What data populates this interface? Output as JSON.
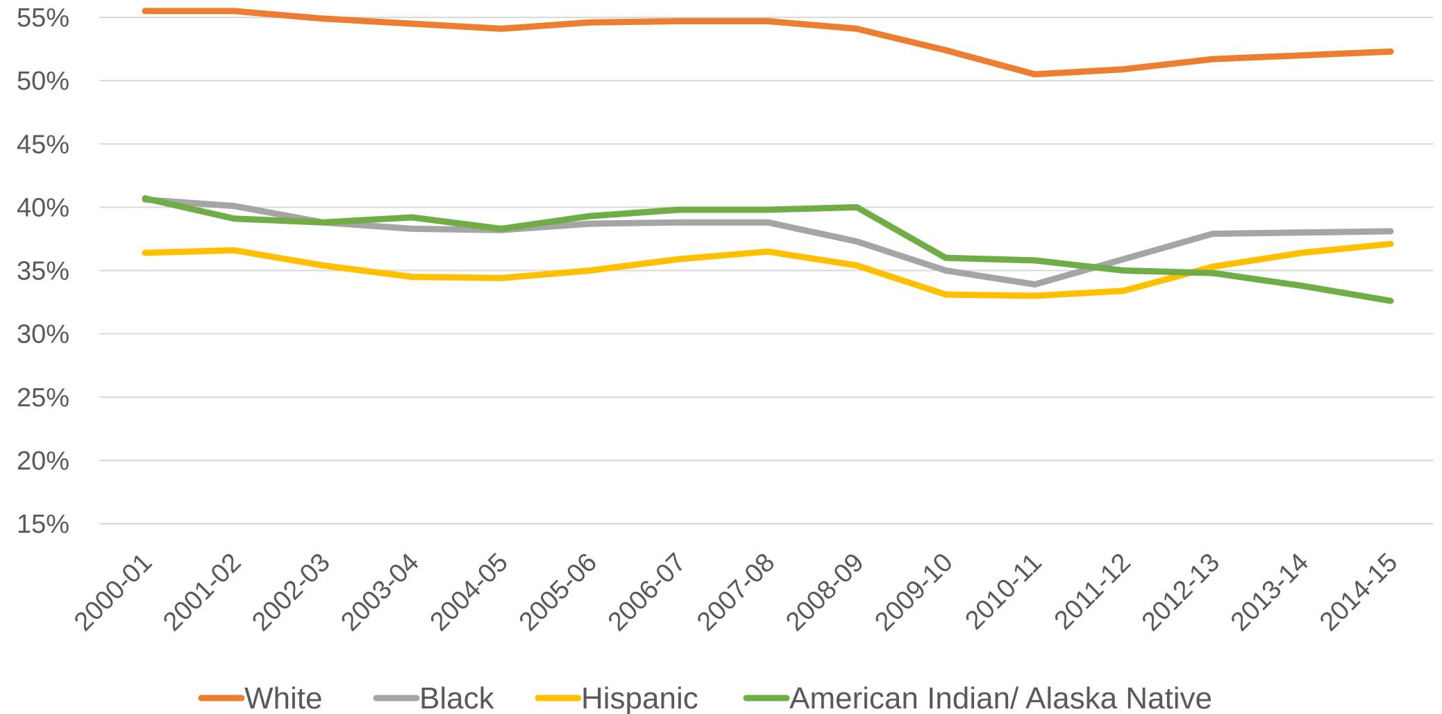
{
  "chart_data": {
    "type": "line",
    "title": "",
    "xlabel": "",
    "ylabel": "",
    "categories": [
      "2000-01",
      "2001-02",
      "2002-03",
      "2003-04",
      "2004-05",
      "2005-06",
      "2006-07",
      "2007-08",
      "2008-09",
      "2009-10",
      "2010-11",
      "2011-12",
      "2012-13",
      "2013-14",
      "2014-15"
    ],
    "y_ticks": [
      15,
      20,
      25,
      30,
      35,
      40,
      45,
      50,
      55
    ],
    "y_tick_labels": [
      "15%",
      "20%",
      "25%",
      "30%",
      "35%",
      "40%",
      "45%",
      "50%",
      "55%"
    ],
    "ylim": [
      15,
      55
    ],
    "grid": "horizontal",
    "legend_position": "bottom",
    "series": [
      {
        "name": "White",
        "color": "#ED7D31",
        "values": [
          55.5,
          55.5,
          54.9,
          54.5,
          54.1,
          54.6,
          54.7,
          54.7,
          54.1,
          52.4,
          50.5,
          50.9,
          51.7,
          52.0,
          52.3
        ]
      },
      {
        "name": "Black",
        "color": "#A5A5A5",
        "values": [
          40.6,
          40.1,
          38.8,
          38.3,
          38.2,
          38.7,
          38.8,
          38.8,
          37.3,
          35.0,
          33.9,
          35.9,
          37.9,
          38.0,
          38.1
        ]
      },
      {
        "name": "Hispanic",
        "color": "#FFC000",
        "values": [
          36.4,
          36.6,
          35.4,
          34.5,
          34.4,
          35.0,
          35.9,
          36.5,
          35.4,
          33.1,
          33.0,
          33.4,
          35.3,
          36.4,
          37.1
        ]
      },
      {
        "name": "American Indian/ Alaska Native",
        "color": "#70AD47",
        "values": [
          40.7,
          39.1,
          38.8,
          39.2,
          38.3,
          39.3,
          39.8,
          39.8,
          40.0,
          36.0,
          35.8,
          35.0,
          34.8,
          33.8,
          32.6
        ]
      }
    ]
  }
}
